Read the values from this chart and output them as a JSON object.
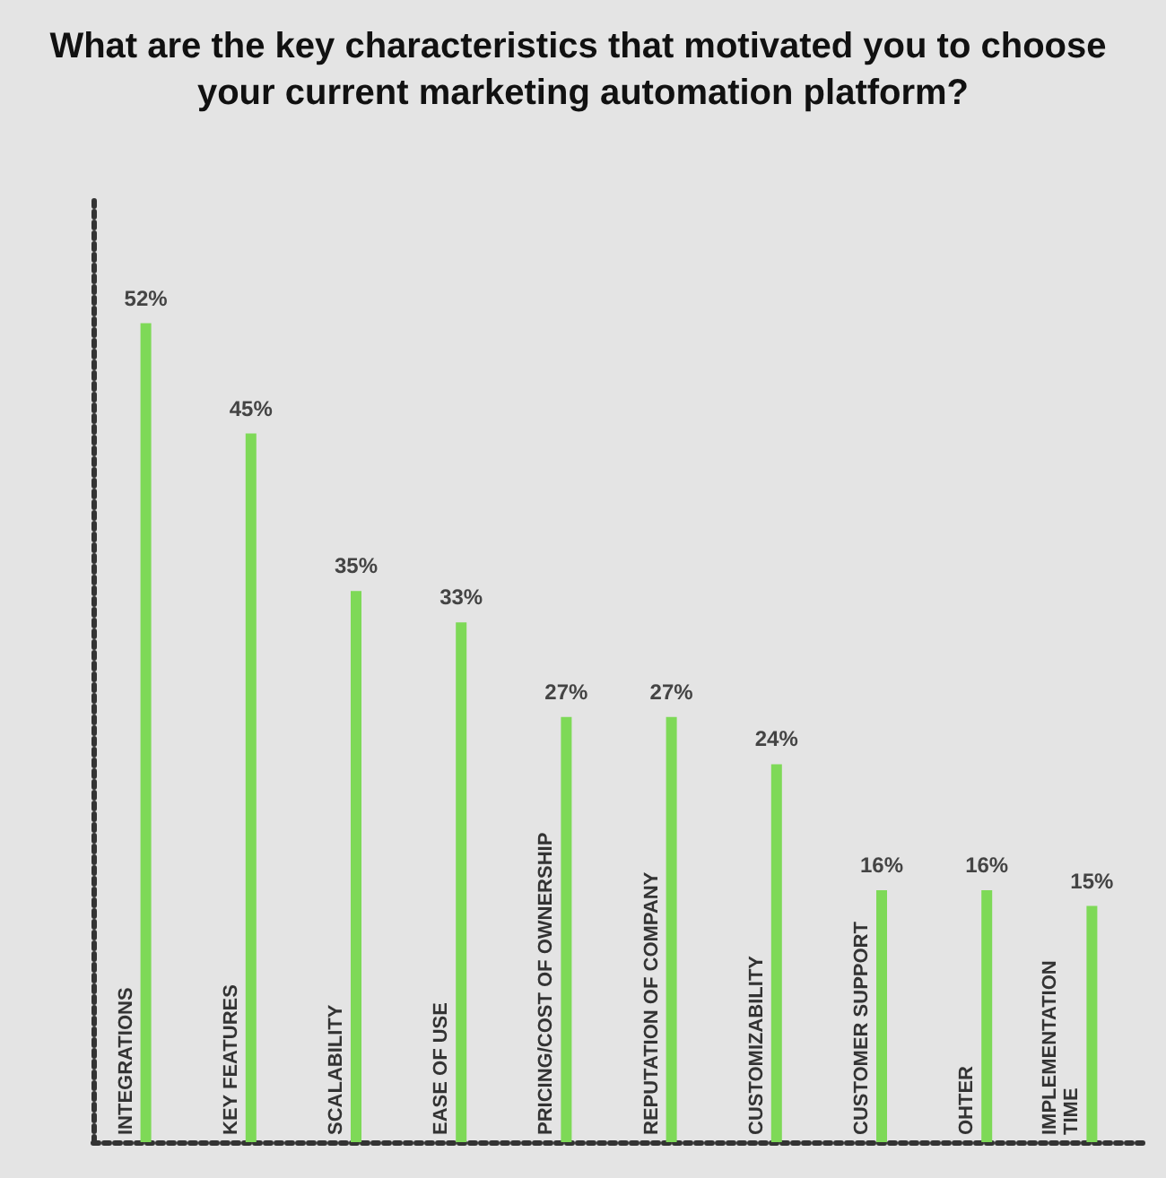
{
  "chart_data": {
    "type": "bar",
    "title": "What are the key characteristics that motivated you to choose your current marketing automation platform?",
    "categories": [
      "INTEGRATIONS",
      "KEY FEATURES",
      "SCALABILITY",
      "EASE OF USE",
      "PRICING/COST OF OWNERSHIP",
      "REPUTATION OF COMPANY",
      "CUSTOMIZABILITY",
      "CUSTOMER SUPPORT",
      "OHTER",
      "IMPLEMENTATION TIME"
    ],
    "values": [
      52,
      45,
      35,
      33,
      27,
      27,
      24,
      16,
      16,
      15
    ],
    "value_labels": [
      "52%",
      "45%",
      "35%",
      "33%",
      "27%",
      "27%",
      "24%",
      "16%",
      "16%",
      "15%"
    ],
    "color": "#7ed957",
    "ylim": [
      0,
      60
    ]
  }
}
